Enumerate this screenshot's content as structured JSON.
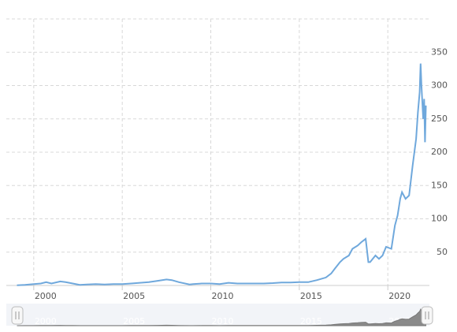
{
  "chart_data": {
    "type": "line",
    "x": [
      1999.05,
      1999.5,
      2000.0,
      2000.4,
      2000.7,
      2001.0,
      2001.5,
      2001.8,
      2002.2,
      2002.6,
      2003.0,
      2003.5,
      2004.0,
      2004.5,
      2005.0,
      2005.5,
      2006.0,
      2006.5,
      2007.0,
      2007.5,
      2007.8,
      2008.2,
      2008.8,
      2009.0,
      2009.5,
      2010.0,
      2010.5,
      2011.0,
      2011.5,
      2012.0,
      2012.5,
      2013.0,
      2013.5,
      2014.0,
      2014.5,
      2015.0,
      2015.5,
      2016.0,
      2016.5,
      2016.8,
      2017.0,
      2017.3,
      2017.5,
      2017.8,
      2018.0,
      2018.3,
      2018.5,
      2018.75,
      2018.9,
      2019.0,
      2019.3,
      2019.5,
      2019.7,
      2019.9,
      2020.2,
      2020.4,
      2020.55,
      2020.7,
      2020.8,
      2021.0,
      2021.2,
      2021.4,
      2021.5,
      2021.6,
      2021.7,
      2021.8,
      2021.85,
      2021.9,
      2022.0,
      2022.05,
      2022.1,
      2022.15
    ],
    "values": [
      0.4,
      0.8,
      2,
      3,
      5,
      3,
      6,
      5,
      3,
      1,
      1.5,
      2,
      1.5,
      2,
      2,
      3,
      4,
      5,
      7,
      9,
      8,
      5,
      1.5,
      2,
      3,
      3,
      2,
      4,
      3,
      3,
      3,
      3,
      3.5,
      4.5,
      4.5,
      5,
      5,
      8,
      12,
      18,
      25,
      35,
      40,
      45,
      55,
      60,
      65,
      70,
      35,
      35,
      45,
      40,
      45,
      58,
      55,
      90,
      105,
      130,
      140,
      130,
      135,
      180,
      200,
      220,
      260,
      290,
      333,
      300,
      250,
      280,
      215,
      270
    ],
    "color": "#6fa8dc",
    "xlim": [
      1998.45,
      2022.35
    ],
    "xticks": [
      2000,
      2005,
      2010,
      2015,
      2020
    ],
    "ylim": [
      0,
      400
    ],
    "yticks": [
      50,
      100,
      150,
      200,
      250,
      300,
      350
    ],
    "grid": true
  }
}
